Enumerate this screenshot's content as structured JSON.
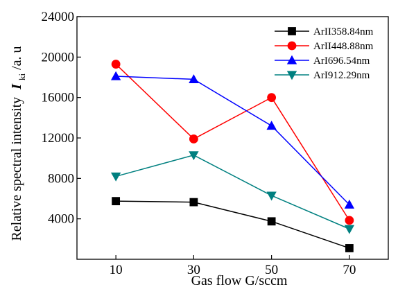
{
  "chart_data": {
    "type": "line",
    "x": [
      10,
      30,
      50,
      70
    ],
    "xlabel": "Gas flow  G/sccm",
    "ylabel_text": "Relative spectral intensity",
    "ylabel_symbol": "I",
    "ylabel_subscript": "ki",
    "ylabel_unit": "/a. u",
    "ylim": [
      0,
      24000
    ],
    "yticks": [
      4000,
      8000,
      12000,
      16000,
      20000,
      24000
    ],
    "xticks": [
      10,
      30,
      50,
      70
    ],
    "grid": false,
    "legend_position": "top-right",
    "series": [
      {
        "name": "ArII358.84nm",
        "color": "#000000",
        "marker": "square",
        "values": [
          5750,
          5650,
          3750,
          1100
        ]
      },
      {
        "name": "ArII448.88nm",
        "color": "#ff0000",
        "marker": "circle",
        "values": [
          19300,
          11900,
          16000,
          3850
        ]
      },
      {
        "name": "ArI696.54nm",
        "color": "#0000ff",
        "marker": "triangle-up",
        "values": [
          18100,
          17800,
          13200,
          5400
        ]
      },
      {
        "name": "ArI912.29nm",
        "color": "#008080",
        "marker": "triangle-down",
        "values": [
          8200,
          10300,
          6300,
          3000
        ]
      }
    ]
  }
}
